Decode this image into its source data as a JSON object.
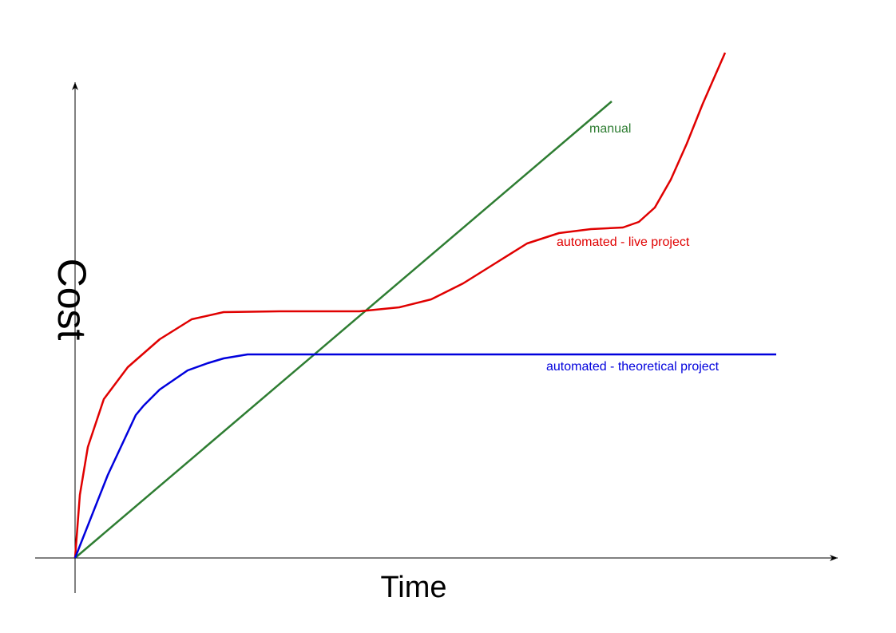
{
  "chart_data": {
    "type": "line",
    "xlabel": "Time",
    "ylabel": "Cost",
    "xlim": [
      0,
      955
    ],
    "ylim": [
      0,
      640
    ],
    "series": [
      {
        "name": "manual",
        "color": "#2e7d32",
        "x": [
          0,
          672
        ],
        "values": [
          0,
          572
        ]
      },
      {
        "name": "automated - live project",
        "color": "#e00000",
        "x": [
          0,
          6,
          16,
          36,
          66,
          106,
          146,
          186,
          256,
          356,
          406,
          446,
          486,
          526,
          566,
          606,
          646,
          686,
          706,
          726,
          746,
          766,
          786,
          814
        ],
        "values": [
          0,
          79,
          139,
          199,
          239,
          274,
          299,
          308,
          309,
          309,
          314,
          324,
          344,
          369,
          394,
          407,
          412,
          414,
          421,
          439,
          474,
          519,
          569,
          633
        ]
      },
      {
        "name": "automated - theoretical project",
        "color": "#0000dd",
        "x": [
          0,
          41,
          76,
          86,
          106,
          141,
          166,
          186,
          216,
          878
        ],
        "values": [
          0,
          104,
          179,
          191,
          211,
          235,
          244,
          250,
          255,
          255
        ]
      }
    ]
  }
}
